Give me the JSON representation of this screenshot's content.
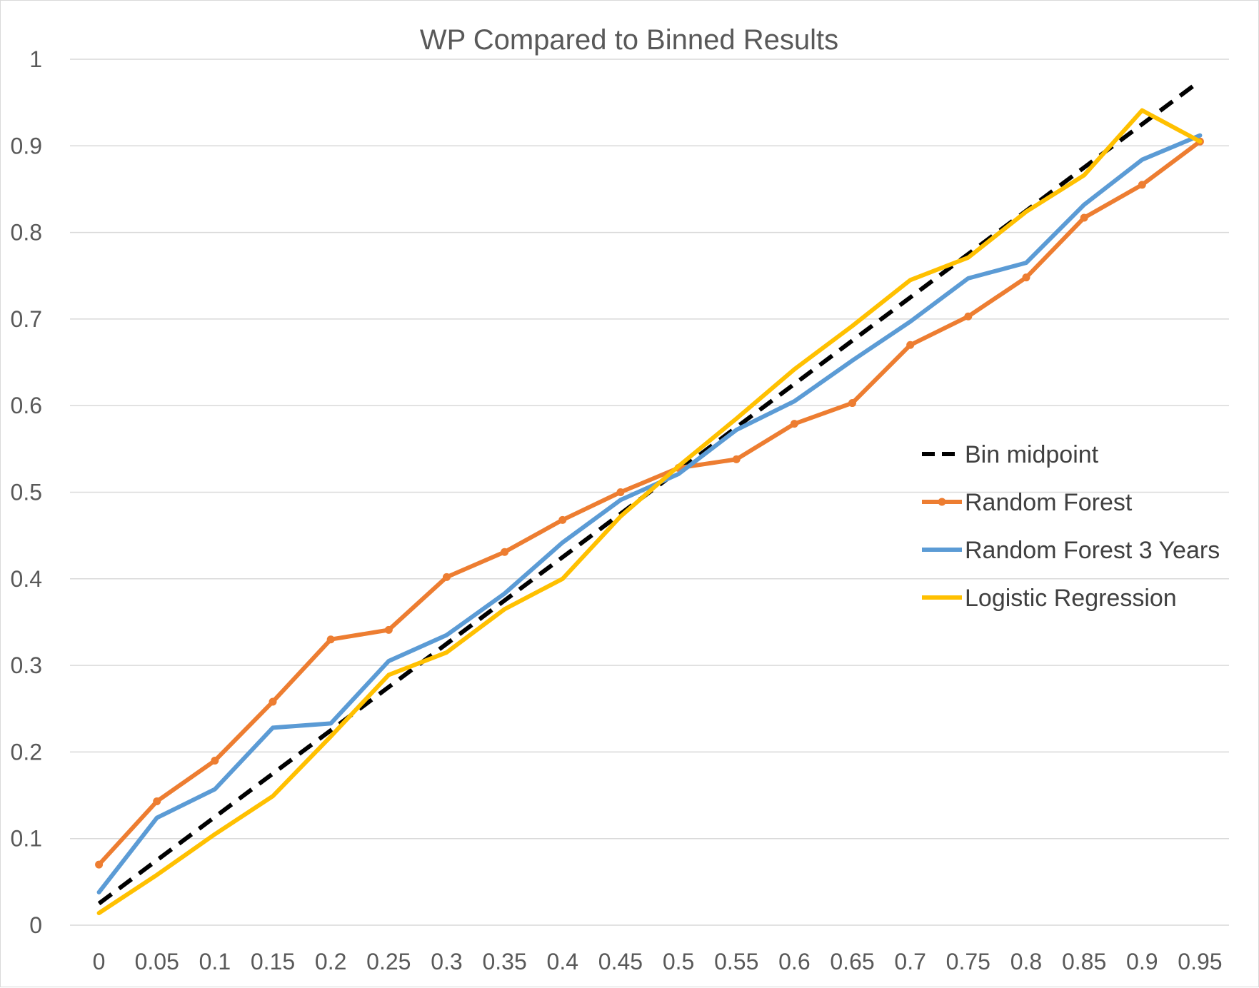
{
  "chart_data": {
    "type": "line",
    "title": "WP Compared to Binned Results",
    "xlabel": "",
    "ylabel": "",
    "categories": [
      "0",
      "0.05",
      "0.1",
      "0.15",
      "0.2",
      "0.25",
      "0.3",
      "0.35",
      "0.4",
      "0.45",
      "0.5",
      "0.55",
      "0.6",
      "0.65",
      "0.7",
      "0.75",
      "0.8",
      "0.85",
      "0.9",
      "0.95"
    ],
    "y_ticks": [
      "0",
      "0.1",
      "0.2",
      "0.3",
      "0.4",
      "0.5",
      "0.6",
      "0.7",
      "0.8",
      "0.9",
      "1"
    ],
    "ylim": [
      0,
      1
    ],
    "grid": "horizontal",
    "legend_position": "right",
    "series": [
      {
        "name": "Bin midpoint",
        "color": "#000000",
        "dashed": true,
        "markers": false,
        "values": [
          0.025,
          0.075,
          0.125,
          0.175,
          0.225,
          0.275,
          0.325,
          0.375,
          0.425,
          0.475,
          0.525,
          0.575,
          0.625,
          0.675,
          0.725,
          0.775,
          0.825,
          0.875,
          0.925,
          0.975
        ]
      },
      {
        "name": "Random Forest",
        "color": "#ed7d31",
        "dashed": false,
        "markers": true,
        "values": [
          0.07,
          0.143,
          0.19,
          0.258,
          0.33,
          0.341,
          0.402,
          0.431,
          0.468,
          0.5,
          0.528,
          0.538,
          0.579,
          0.603,
          0.67,
          0.703,
          0.748,
          0.817,
          0.855,
          0.905
        ]
      },
      {
        "name": "Random Forest 3 Years",
        "color": "#5b9bd5",
        "dashed": false,
        "markers": false,
        "values": [
          0.038,
          0.124,
          0.157,
          0.228,
          0.233,
          0.305,
          0.335,
          0.383,
          0.442,
          0.491,
          0.521,
          0.572,
          0.605,
          0.652,
          0.697,
          0.747,
          0.765,
          0.832,
          0.884,
          0.912
        ]
      },
      {
        "name": "Logistic Regression",
        "color": "#ffc000",
        "dashed": false,
        "markers": false,
        "values": [
          0.014,
          0.058,
          0.105,
          0.149,
          0.218,
          0.289,
          0.315,
          0.365,
          0.4,
          0.472,
          0.53,
          0.585,
          0.642,
          0.692,
          0.745,
          0.771,
          0.824,
          0.866,
          0.941,
          0.905
        ]
      }
    ]
  }
}
